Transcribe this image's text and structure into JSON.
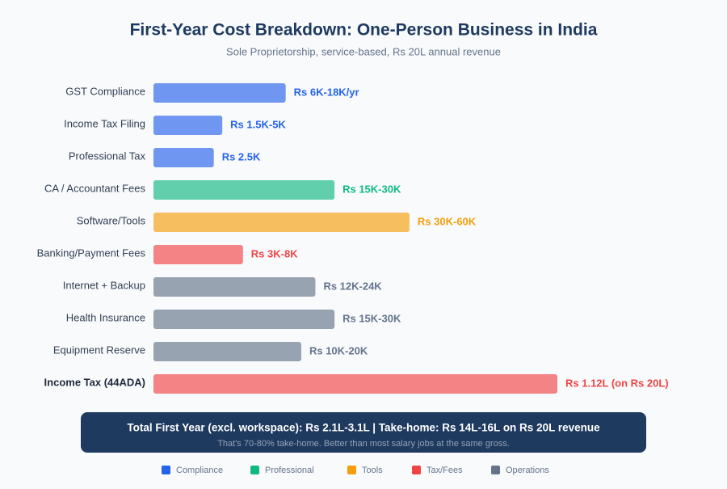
{
  "chart_data": {
    "type": "bar",
    "title": "First-Year Cost Breakdown: One-Person Business in India",
    "subtitle": "Sole Proprietorship, service-based, Rs 20L annual revenue",
    "categories": [
      "GST Compliance",
      "Income Tax Filing",
      "Professional Tax",
      "CA / Accountant Fees",
      "Software/Tools",
      "Banking/Payment Fees",
      "Internet + Backup",
      "Health Insurance",
      "Equipment Reserve",
      "Income Tax (44ADA)"
    ],
    "values": [
      12000,
      3250,
      2500,
      22500,
      45000,
      5500,
      18000,
      22500,
      15000,
      112000
    ],
    "value_labels": [
      "Rs 6K-18K/yr",
      "Rs 1.5K-5K",
      "Rs 2.5K",
      "Rs 15K-30K",
      "Rs 30K-60K",
      "Rs 3K-8K",
      "Rs 12K-24K",
      "Rs 15K-30K",
      "Rs 10K-20K",
      "Rs 1.12L (on Rs 20L)"
    ],
    "category_groups": [
      0,
      0,
      0,
      1,
      2,
      3,
      4,
      4,
      4,
      3
    ],
    "legend": [
      {
        "name": "Compliance",
        "color": "#2563eb"
      },
      {
        "name": "Professional",
        "color": "#10b981"
      },
      {
        "name": "Tools",
        "color": "#f59e0b"
      },
      {
        "name": "Tax/Fees",
        "color": "#ef4444"
      },
      {
        "name": "Operations",
        "color": "#64748b"
      }
    ]
  },
  "summary": {
    "headline": "Total First Year (excl. workspace): Rs 2.1L-3.1L | Take-home: Rs 14L-16L on Rs 20L revenue",
    "note": "That's 70-80% take-home. Better than most salary jobs at the same gross."
  }
}
